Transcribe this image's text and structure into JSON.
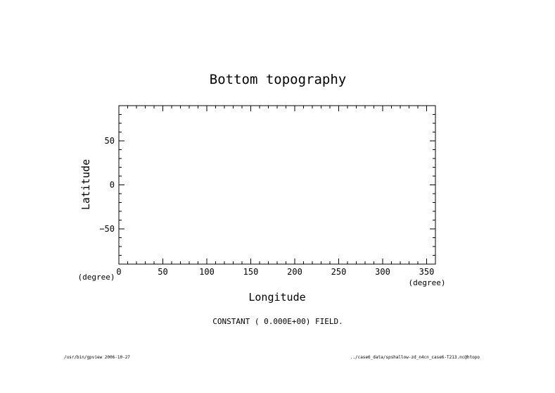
{
  "chart_data": {
    "type": "heatmap",
    "title": "Bottom topography",
    "xlabel": "Longitude",
    "ylabel": "Latitude",
    "x_unit": "(degree)",
    "y_unit": "(degree)",
    "xlim": [
      0,
      360
    ],
    "ylim": [
      -90,
      90
    ],
    "x_ticks": [
      0,
      50,
      100,
      150,
      200,
      250,
      300,
      350
    ],
    "y_ticks": [
      -50,
      0,
      50
    ],
    "x_minor_step": 10,
    "y_minor_step": 10,
    "grid": false,
    "annotation": "CONSTANT ( 0.000E+00) FIELD."
  },
  "footer": {
    "left": "/usr/bin/gpview  2006-10-27",
    "right": "../case6_data/spshallow-zd_n4cn_case6-T213.nc@htopo"
  }
}
